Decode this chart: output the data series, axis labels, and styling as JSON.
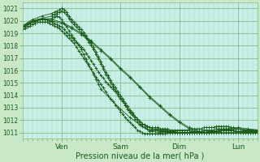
{
  "title": "Pression niveau de la mer( hPa )",
  "ylabel_values": [
    1011,
    1012,
    1013,
    1014,
    1015,
    1016,
    1017,
    1018,
    1019,
    1020,
    1021
  ],
  "ylim": [
    1010.5,
    1021.5
  ],
  "xlim": [
    0,
    96
  ],
  "xtick_positions": [
    16,
    40,
    64,
    88
  ],
  "xtick_labels": [
    "Ven",
    "Sam",
    "Dim",
    "Lun"
  ],
  "bg_color": "#c8e8c8",
  "grid_color_major": "#88bb88",
  "grid_color_minor": "#aaddaa",
  "line_color": "#1a5c1a",
  "plot_bg": "#c8eee8",
  "lines": [
    {
      "x": [
        0,
        1,
        2,
        3,
        4,
        5,
        6,
        7,
        8,
        9,
        10,
        11,
        12,
        13,
        14,
        15,
        16,
        17,
        18,
        19,
        20,
        21,
        22,
        23,
        24,
        25,
        26,
        27,
        28,
        29,
        30,
        31,
        32,
        33,
        34,
        35,
        36,
        37,
        38,
        39,
        40,
        41,
        42,
        43,
        44,
        45,
        46,
        47,
        48,
        49,
        50,
        51,
        52,
        53,
        54,
        55,
        56,
        57,
        58,
        59,
        60,
        61,
        62,
        63,
        64,
        65,
        66,
        67,
        68,
        69,
        70,
        71,
        72,
        73,
        74,
        75,
        76,
        77,
        78,
        79,
        80,
        81,
        82,
        83,
        84,
        85,
        86,
        87,
        88,
        89,
        90,
        91,
        92,
        93,
        94,
        95,
        96
      ],
      "y": [
        1019.5,
        1019.6,
        1019.7,
        1019.8,
        1019.9,
        1020.0,
        1020.1,
        1020.1,
        1020.1,
        1020.1,
        1020.1,
        1020.0,
        1019.9,
        1019.8,
        1019.7,
        1019.6,
        1019.5,
        1019.3,
        1019.1,
        1018.9,
        1018.7,
        1018.5,
        1018.3,
        1018.1,
        1017.9,
        1017.7,
        1017.4,
        1017.1,
        1016.8,
        1016.5,
        1016.2,
        1015.9,
        1015.6,
        1015.4,
        1015.1,
        1014.9,
        1014.7,
        1014.5,
        1014.3,
        1014.0,
        1013.7,
        1013.5,
        1013.2,
        1012.9,
        1012.7,
        1012.5,
        1012.3,
        1012.1,
        1011.9,
        1011.7,
        1011.6,
        1011.5,
        1011.4,
        1011.3,
        1011.3,
        1011.3,
        1011.2,
        1011.2,
        1011.2,
        1011.2,
        1011.1,
        1011.1,
        1011.1,
        1011.0,
        1011.0,
        1011.0,
        1011.0,
        1011.0,
        1011.0,
        1011.0,
        1011.0,
        1011.0,
        1011.0,
        1011.0,
        1011.0,
        1011.0,
        1011.1,
        1011.1,
        1011.1,
        1011.1,
        1011.1,
        1011.2,
        1011.2,
        1011.2,
        1011.2,
        1011.2,
        1011.2,
        1011.1,
        1011.1,
        1011.1,
        1011.1,
        1011.1,
        1011.1,
        1011.1,
        1011.1,
        1011.1,
        1011.1
      ]
    },
    {
      "x": [
        0,
        1,
        2,
        3,
        4,
        5,
        6,
        7,
        8,
        9,
        10,
        11,
        12,
        13,
        14,
        15,
        16,
        17,
        18,
        19,
        20,
        21,
        22,
        23,
        24,
        25,
        26,
        27,
        28,
        29,
        30,
        31,
        32,
        33,
        34,
        35,
        36,
        37,
        38,
        39,
        40,
        41,
        42,
        43,
        44,
        45,
        46,
        47,
        48,
        49,
        50,
        51,
        52,
        53,
        54,
        55,
        56,
        57,
        58,
        59,
        60,
        61,
        62,
        63,
        64,
        65,
        66,
        67,
        68,
        69,
        70,
        71,
        72,
        73,
        74,
        75,
        76,
        77,
        78,
        79,
        80,
        81,
        82,
        83,
        84,
        85,
        86,
        87,
        88,
        89,
        90,
        91,
        92,
        93,
        94,
        95,
        96
      ],
      "y": [
        1019.3,
        1019.4,
        1019.5,
        1019.6,
        1019.7,
        1019.8,
        1019.9,
        1019.9,
        1019.9,
        1019.9,
        1019.9,
        1019.8,
        1019.7,
        1019.6,
        1019.5,
        1019.4,
        1019.2,
        1019.0,
        1018.8,
        1018.6,
        1018.4,
        1018.2,
        1017.9,
        1017.6,
        1017.3,
        1017.0,
        1016.7,
        1016.4,
        1016.1,
        1015.8,
        1015.5,
        1015.2,
        1014.9,
        1014.6,
        1014.3,
        1014.0,
        1013.7,
        1013.5,
        1013.2,
        1013.0,
        1012.7,
        1012.5,
        1012.2,
        1012.0,
        1011.8,
        1011.6,
        1011.4,
        1011.2,
        1011.1,
        1011.0,
        1010.9,
        1010.9,
        1010.9,
        1010.9,
        1010.9,
        1010.9,
        1010.9,
        1010.9,
        1010.9,
        1011.0,
        1011.0,
        1011.0,
        1011.0,
        1011.0,
        1011.0,
        1011.0,
        1011.0,
        1011.0,
        1011.0,
        1011.0,
        1011.0,
        1011.0,
        1011.0,
        1011.0,
        1011.0,
        1011.0,
        1011.0,
        1011.0,
        1011.0,
        1011.0,
        1011.0,
        1011.0,
        1011.0,
        1011.0,
        1011.0,
        1011.0,
        1011.0,
        1011.0,
        1011.0,
        1011.0,
        1011.0,
        1011.0,
        1011.0,
        1011.0,
        1011.0,
        1011.0,
        1011.0
      ]
    },
    {
      "x": [
        0,
        4,
        8,
        12,
        16,
        20,
        24,
        28,
        32,
        36,
        40,
        44,
        48,
        52,
        56,
        60,
        64,
        68,
        72,
        76,
        80,
        84,
        88,
        92,
        96
      ],
      "y": [
        1019.5,
        1019.9,
        1020.1,
        1020.0,
        1019.8,
        1019.4,
        1018.9,
        1018.3,
        1017.6,
        1016.9,
        1016.1,
        1015.4,
        1014.6,
        1013.8,
        1013.1,
        1012.4,
        1011.8,
        1011.3,
        1011.0,
        1011.0,
        1011.1,
        1011.2,
        1011.3,
        1011.2,
        1011.1
      ]
    },
    {
      "x": [
        0,
        4,
        8,
        12,
        16,
        20,
        24,
        28,
        32,
        36,
        40,
        44,
        48,
        52,
        56,
        60,
        64,
        68,
        72,
        76,
        80,
        84,
        88,
        92,
        96
      ],
      "y": [
        1019.6,
        1020.0,
        1020.2,
        1020.1,
        1019.9,
        1019.5,
        1019.0,
        1018.4,
        1017.7,
        1017.0,
        1016.2,
        1015.5,
        1014.7,
        1013.9,
        1013.2,
        1012.5,
        1011.9,
        1011.4,
        1011.1,
        1011.0,
        1011.2,
        1011.3,
        1011.4,
        1011.3,
        1011.2
      ]
    },
    {
      "x": [
        0,
        4,
        8,
        12,
        13,
        14,
        15,
        16,
        17,
        18,
        19,
        20,
        21,
        22,
        23,
        24,
        25,
        26,
        27,
        28,
        29,
        30,
        31,
        32,
        33,
        34,
        35,
        36,
        37,
        38,
        39,
        40,
        41,
        42,
        43,
        44,
        45,
        46,
        47,
        48,
        49,
        50,
        51,
        52,
        53,
        54,
        55,
        56,
        57,
        58,
        59,
        60,
        61,
        62,
        63,
        64,
        65,
        66,
        67,
        68,
        69,
        70,
        71,
        72,
        73,
        74,
        75,
        76,
        77,
        78,
        79,
        80,
        81,
        82,
        83,
        84,
        85,
        86,
        87,
        88,
        89,
        90,
        91,
        92,
        93,
        94,
        95,
        96
      ],
      "y": [
        1019.4,
        1019.9,
        1020.2,
        1020.4,
        1020.5,
        1020.6,
        1020.7,
        1020.8,
        1020.7,
        1020.5,
        1020.2,
        1019.9,
        1019.7,
        1019.5,
        1019.3,
        1019.1,
        1018.9,
        1018.6,
        1018.3,
        1018.0,
        1017.7,
        1017.3,
        1016.9,
        1016.5,
        1016.1,
        1015.7,
        1015.4,
        1015.0,
        1014.7,
        1014.4,
        1014.1,
        1013.8,
        1013.5,
        1013.2,
        1012.9,
        1012.6,
        1012.4,
        1012.1,
        1011.9,
        1011.7,
        1011.5,
        1011.4,
        1011.3,
        1011.2,
        1011.2,
        1011.2,
        1011.2,
        1011.1,
        1011.1,
        1011.1,
        1011.1,
        1011.0,
        1011.0,
        1011.0,
        1011.0,
        1011.0,
        1011.0,
        1011.0,
        1011.0,
        1011.0,
        1011.1,
        1011.1,
        1011.1,
        1011.1,
        1011.1,
        1011.2,
        1011.2,
        1011.2,
        1011.2,
        1011.2,
        1011.3,
        1011.3,
        1011.3,
        1011.3,
        1011.3,
        1011.3,
        1011.2,
        1011.2,
        1011.1,
        1011.1,
        1011.1,
        1011.0,
        1011.0,
        1011.0,
        1011.0,
        1011.0,
        1011.0,
        1011.0
      ]
    },
    {
      "x": [
        0,
        4,
        8,
        12,
        13,
        14,
        15,
        16,
        17,
        18,
        19,
        20,
        21,
        22,
        23,
        24,
        25,
        26,
        27,
        28,
        29,
        30,
        31,
        32,
        33,
        34,
        35,
        36,
        37,
        38,
        39,
        40,
        41,
        42,
        43,
        44,
        45,
        46,
        47,
        48,
        49,
        50,
        51,
        52,
        53,
        54,
        55,
        56,
        57,
        58,
        59,
        60,
        61,
        62,
        63,
        64,
        65,
        66,
        67,
        68,
        69,
        70,
        71,
        72,
        73,
        74,
        75,
        76,
        77,
        78,
        79,
        80,
        81,
        82,
        83,
        84,
        85,
        86,
        87,
        88,
        89,
        90,
        91,
        92,
        93,
        94,
        95,
        96
      ],
      "y": [
        1019.6,
        1020.1,
        1020.4,
        1020.6,
        1020.7,
        1020.8,
        1020.9,
        1021.0,
        1020.9,
        1020.7,
        1020.4,
        1020.1,
        1019.9,
        1019.7,
        1019.5,
        1019.3,
        1019.1,
        1018.8,
        1018.5,
        1018.2,
        1017.9,
        1017.5,
        1017.1,
        1016.7,
        1016.3,
        1015.9,
        1015.6,
        1015.2,
        1014.9,
        1014.6,
        1014.3,
        1014.0,
        1013.7,
        1013.4,
        1013.1,
        1012.8,
        1012.6,
        1012.3,
        1012.1,
        1011.9,
        1011.7,
        1011.6,
        1011.5,
        1011.4,
        1011.4,
        1011.4,
        1011.4,
        1011.3,
        1011.3,
        1011.3,
        1011.3,
        1011.2,
        1011.2,
        1011.2,
        1011.2,
        1011.2,
        1011.2,
        1011.2,
        1011.2,
        1011.2,
        1011.3,
        1011.3,
        1011.3,
        1011.3,
        1011.3,
        1011.4,
        1011.4,
        1011.4,
        1011.4,
        1011.4,
        1011.5,
        1011.5,
        1011.5,
        1011.5,
        1011.5,
        1011.5,
        1011.4,
        1011.4,
        1011.3,
        1011.3,
        1011.3,
        1011.2,
        1011.2,
        1011.2,
        1011.2,
        1011.2,
        1011.2,
        1011.2
      ]
    },
    {
      "x": [
        0,
        4,
        8,
        12,
        13,
        14,
        15,
        16,
        17,
        18,
        19,
        20,
        21,
        22,
        23,
        24,
        25,
        26,
        27,
        28,
        29,
        30,
        31,
        32,
        36,
        40,
        44,
        48,
        52,
        56,
        60,
        64,
        68,
        72,
        76,
        80,
        84,
        88,
        92,
        96
      ],
      "y": [
        1019.5,
        1020.0,
        1020.1,
        1020.2,
        1020.3,
        1020.4,
        1020.3,
        1020.1,
        1019.8,
        1019.5,
        1019.2,
        1018.9,
        1018.6,
        1018.3,
        1018.0,
        1017.7,
        1017.3,
        1016.9,
        1016.5,
        1016.1,
        1015.7,
        1015.3,
        1014.9,
        1014.5,
        1013.7,
        1012.9,
        1012.2,
        1011.6,
        1011.1,
        1011.0,
        1011.0,
        1011.0,
        1011.0,
        1011.0,
        1011.0,
        1011.1,
        1011.2,
        1011.3,
        1011.2,
        1011.1
      ]
    }
  ]
}
